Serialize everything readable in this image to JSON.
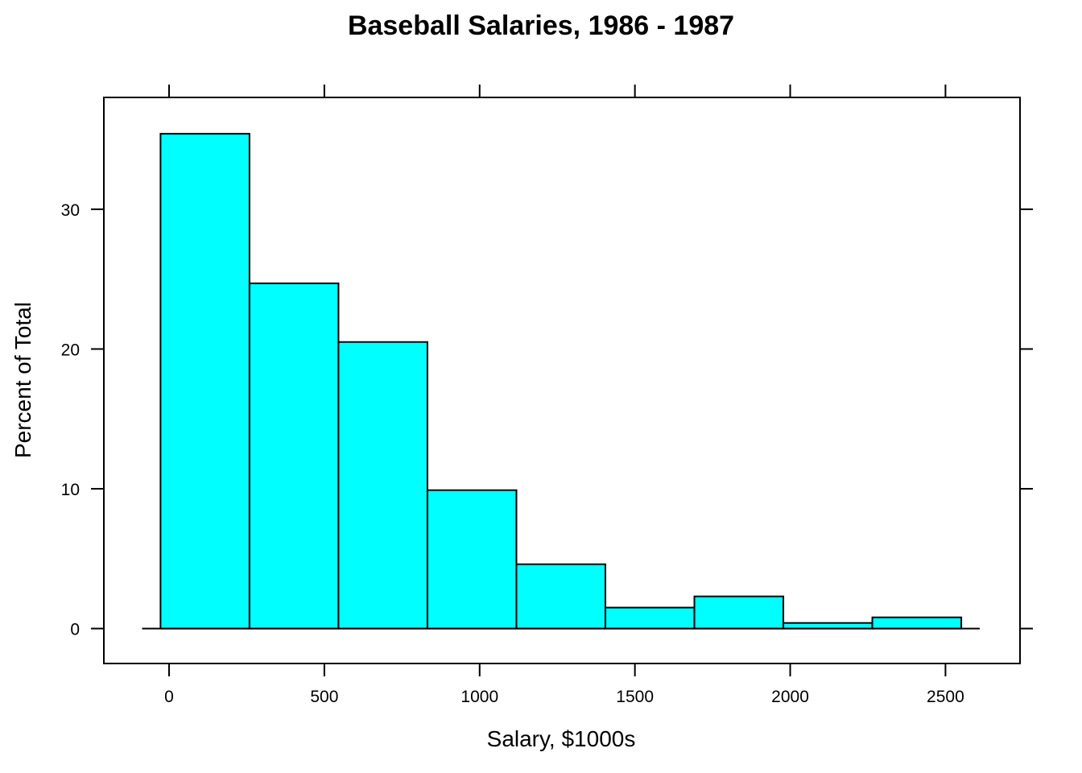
{
  "chart_data": {
    "type": "bar",
    "title": "Baseball Salaries, 1986 - 1987",
    "xlabel": "Salary, $1000s",
    "ylabel": "Percent of Total",
    "xlim": [
      -210,
      2740
    ],
    "ylim": [
      -2.5,
      38.0
    ],
    "x_ticks": [
      0,
      500,
      1000,
      1500,
      2000,
      2500
    ],
    "y_ticks": [
      0,
      10,
      20,
      30
    ],
    "bin_edges": [
      -27.5,
      259.0,
      545.5,
      832.0,
      1118.5,
      1405.0,
      1691.5,
      1978.0,
      2264.5,
      2551.0
    ],
    "values": [
      35.4,
      24.7,
      20.5,
      9.9,
      4.6,
      1.5,
      2.3,
      0.4,
      0.8
    ],
    "bar_color": "#00FFFF",
    "grid": false
  }
}
